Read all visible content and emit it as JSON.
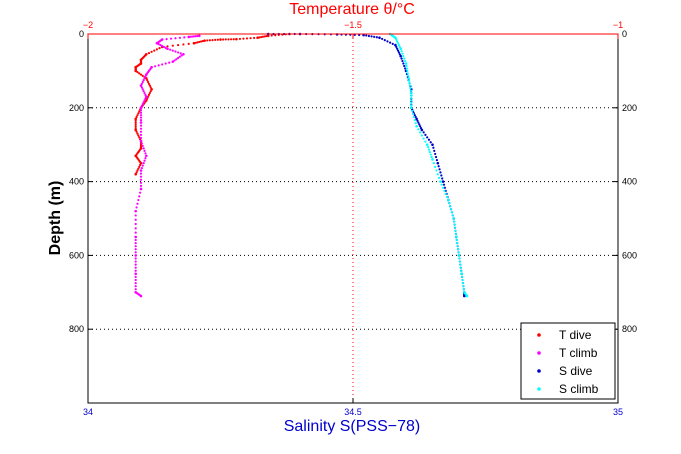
{
  "chart_data": {
    "type": "scatter",
    "title": "Temperature θ/°C",
    "ylabel": "Depth (m)",
    "xlabel_bottom": "Salinity S(PSS−78)",
    "y_axis": {
      "range": [
        0,
        1000
      ],
      "reversed": true,
      "ticks": [
        0,
        200,
        400,
        600,
        800
      ],
      "tick_labels": [
        "0",
        "200",
        "400",
        "600",
        "800"
      ]
    },
    "x_axis_bottom": {
      "range": [
        34,
        35
      ],
      "ticks": [
        34,
        34.5,
        35
      ],
      "tick_labels": [
        "34",
        "34.5",
        "35"
      ]
    },
    "x_axis_top": {
      "range": [
        -2,
        -1
      ],
      "ticks": [
        -2,
        -1.5,
        -1
      ],
      "tick_labels": [
        "−2",
        "−1.5",
        "−1"
      ]
    },
    "grid": "dotted, at y ticks; vertical dotted line at x = 34.5 / −1.5",
    "legend": "bottom-right",
    "series": [
      {
        "name": "T dive",
        "axis": "top",
        "color": "#ff0000",
        "marker": "dot",
        "points": [
          [
            -1.62,
            0
          ],
          [
            -1.66,
            5
          ],
          [
            -1.68,
            10
          ],
          [
            -1.72,
            14
          ],
          [
            -1.75,
            15
          ],
          [
            -1.78,
            18
          ],
          [
            -1.8,
            25
          ],
          [
            -1.86,
            35
          ],
          [
            -1.89,
            55
          ],
          [
            -1.9,
            70
          ],
          [
            -1.9,
            80
          ],
          [
            -1.91,
            90
          ],
          [
            -1.91,
            100
          ],
          [
            -1.89,
            120
          ],
          [
            -1.88,
            150
          ],
          [
            -1.89,
            180
          ],
          [
            -1.9,
            200
          ],
          [
            -1.91,
            230
          ],
          [
            -1.91,
            260
          ],
          [
            -1.9,
            290
          ],
          [
            -1.9,
            310
          ],
          [
            -1.91,
            330
          ],
          [
            -1.9,
            350
          ],
          [
            -1.91,
            380
          ]
        ]
      },
      {
        "name": "T climb",
        "axis": "top",
        "color": "#ff00ff",
        "marker": "dot",
        "points": [
          [
            -1.79,
            5
          ],
          [
            -1.81,
            8
          ],
          [
            -1.86,
            15
          ],
          [
            -1.87,
            25
          ],
          [
            -1.85,
            40
          ],
          [
            -1.82,
            55
          ],
          [
            -1.84,
            75
          ],
          [
            -1.88,
            90
          ],
          [
            -1.89,
            110
          ],
          [
            -1.9,
            140
          ],
          [
            -1.89,
            170
          ],
          [
            -1.9,
            200
          ],
          [
            -1.9,
            240
          ],
          [
            -1.9,
            290
          ],
          [
            -1.89,
            330
          ],
          [
            -1.9,
            370
          ],
          [
            -1.9,
            420
          ],
          [
            -1.91,
            480
          ],
          [
            -1.91,
            550
          ],
          [
            -1.91,
            600
          ],
          [
            -1.91,
            650
          ],
          [
            -1.91,
            700
          ],
          [
            -1.9,
            710
          ]
        ]
      },
      {
        "name": "S dive",
        "axis": "bottom",
        "color": "#0000cc",
        "marker": "dot",
        "points": [
          [
            34.34,
            0
          ],
          [
            34.4,
            0
          ],
          [
            34.47,
            1
          ],
          [
            34.52,
            3
          ],
          [
            34.55,
            10
          ],
          [
            34.58,
            30
          ],
          [
            34.59,
            60
          ],
          [
            34.6,
            100
          ],
          [
            34.61,
            150
          ],
          [
            34.61,
            200
          ],
          [
            34.62,
            230
          ],
          [
            34.63,
            260
          ],
          [
            34.65,
            300
          ],
          [
            34.66,
            350
          ],
          [
            34.67,
            400
          ],
          [
            34.68,
            450
          ],
          [
            34.69,
            500
          ],
          [
            34.695,
            550
          ],
          [
            34.7,
            600
          ],
          [
            34.705,
            650
          ],
          [
            34.71,
            700
          ],
          [
            34.71,
            710
          ]
        ]
      },
      {
        "name": "S climb",
        "axis": "bottom",
        "color": "#00ffff",
        "marker": "dot",
        "points": [
          [
            34.57,
            0
          ],
          [
            34.58,
            10
          ],
          [
            34.59,
            40
          ],
          [
            34.6,
            80
          ],
          [
            34.605,
            120
          ],
          [
            34.61,
            160
          ],
          [
            34.61,
            200
          ],
          [
            34.62,
            250
          ],
          [
            34.64,
            300
          ],
          [
            34.65,
            340
          ],
          [
            34.665,
            400
          ],
          [
            34.68,
            450
          ],
          [
            34.69,
            500
          ],
          [
            34.695,
            550
          ],
          [
            34.7,
            600
          ],
          [
            34.705,
            650
          ],
          [
            34.71,
            700
          ],
          [
            34.715,
            710
          ]
        ]
      }
    ]
  }
}
